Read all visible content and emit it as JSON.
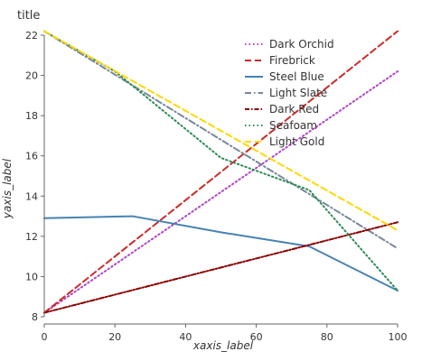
{
  "chart_data": {
    "type": "line",
    "title": "title",
    "xlabel": "xaxis_label",
    "ylabel": "yaxis_label",
    "xlim": [
      0,
      100
    ],
    "ylim": [
      8,
      22
    ],
    "xticks": [
      0,
      20,
      40,
      60,
      80,
      100
    ],
    "yticks": [
      8,
      10,
      12,
      14,
      16,
      18,
      20,
      22
    ],
    "grid": false,
    "legend_position": "top-right",
    "series": [
      {
        "name": "Dark Orchid",
        "color": "#b243c7",
        "dash": "dotted",
        "points": [
          [
            0,
            8.2
          ],
          [
            100,
            20.2
          ]
        ]
      },
      {
        "name": "Firebrick",
        "color": "#cc2a2a",
        "dash": "dashed",
        "points": [
          [
            0,
            8.2
          ],
          [
            100,
            22.2
          ]
        ]
      },
      {
        "name": "Steel Blue",
        "color": "#4682b4",
        "dash": "solid",
        "points": [
          [
            0,
            12.9
          ],
          [
            25,
            13.0
          ],
          [
            50,
            12.2
          ],
          [
            75,
            11.5
          ],
          [
            100,
            9.3
          ]
        ]
      },
      {
        "name": "Light Slate",
        "color": "#778899",
        "dash": "dashdot",
        "points": [
          [
            0,
            22.2
          ],
          [
            100,
            11.4
          ]
        ]
      },
      {
        "name": "Dark Red",
        "color": "#8b0000",
        "dash": "dashdot2",
        "points": [
          [
            0,
            8.2
          ],
          [
            100,
            12.7
          ]
        ]
      },
      {
        "name": "Seafoam",
        "color": "#2e8b57",
        "dash": "dotted",
        "points": [
          [
            0,
            22.2
          ],
          [
            20,
            20.2
          ],
          [
            50,
            15.9
          ],
          [
            75,
            14.3
          ],
          [
            100,
            9.3
          ]
        ]
      },
      {
        "name": "Light Gold",
        "color": "#ffd700",
        "dash": "dashed",
        "points": [
          [
            0,
            22.2
          ],
          [
            100,
            12.3
          ]
        ]
      }
    ]
  }
}
